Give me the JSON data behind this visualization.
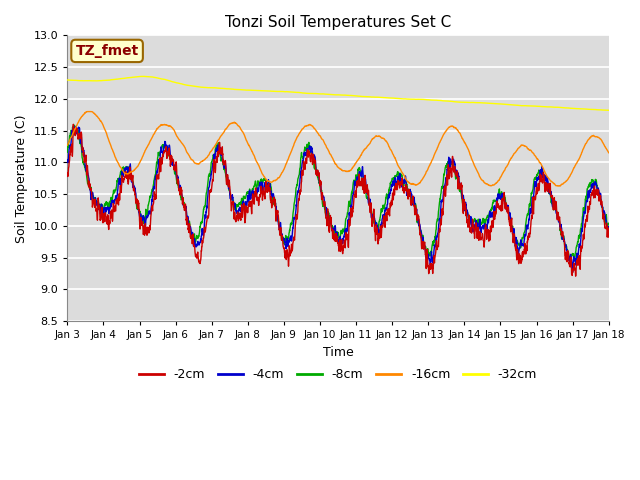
{
  "title": "Tonzi Soil Temperatures Set C",
  "xlabel": "Time",
  "ylabel": "Soil Temperature (C)",
  "annotation": "TZ_fmet",
  "ylim": [
    8.5,
    13.0
  ],
  "xlim": [
    0,
    360
  ],
  "xtick_labels": [
    "Jan 3",
    "Jan 4",
    "Jan 5",
    "Jan 6",
    "Jan 7",
    "Jan 8",
    "Jan 9",
    "Jan 10",
    "Jan 11",
    "Jan 12",
    "Jan 13",
    "Jan 14",
    "Jan 15",
    "Jan 16",
    "Jan 17",
    "Jan 18"
  ],
  "legend_labels": [
    "-2cm",
    "-4cm",
    "-8cm",
    "-16cm",
    "-32cm"
  ],
  "line_colors": [
    "#cc0000",
    "#0000cc",
    "#00aa00",
    "#ff8800",
    "#ffff00"
  ],
  "bg_color": "#dcdcdc",
  "grid_color": "#ffffff",
  "title_fontsize": 11,
  "axis_fontsize": 9,
  "tick_fontsize": 8,
  "legend_fontsize": 9
}
